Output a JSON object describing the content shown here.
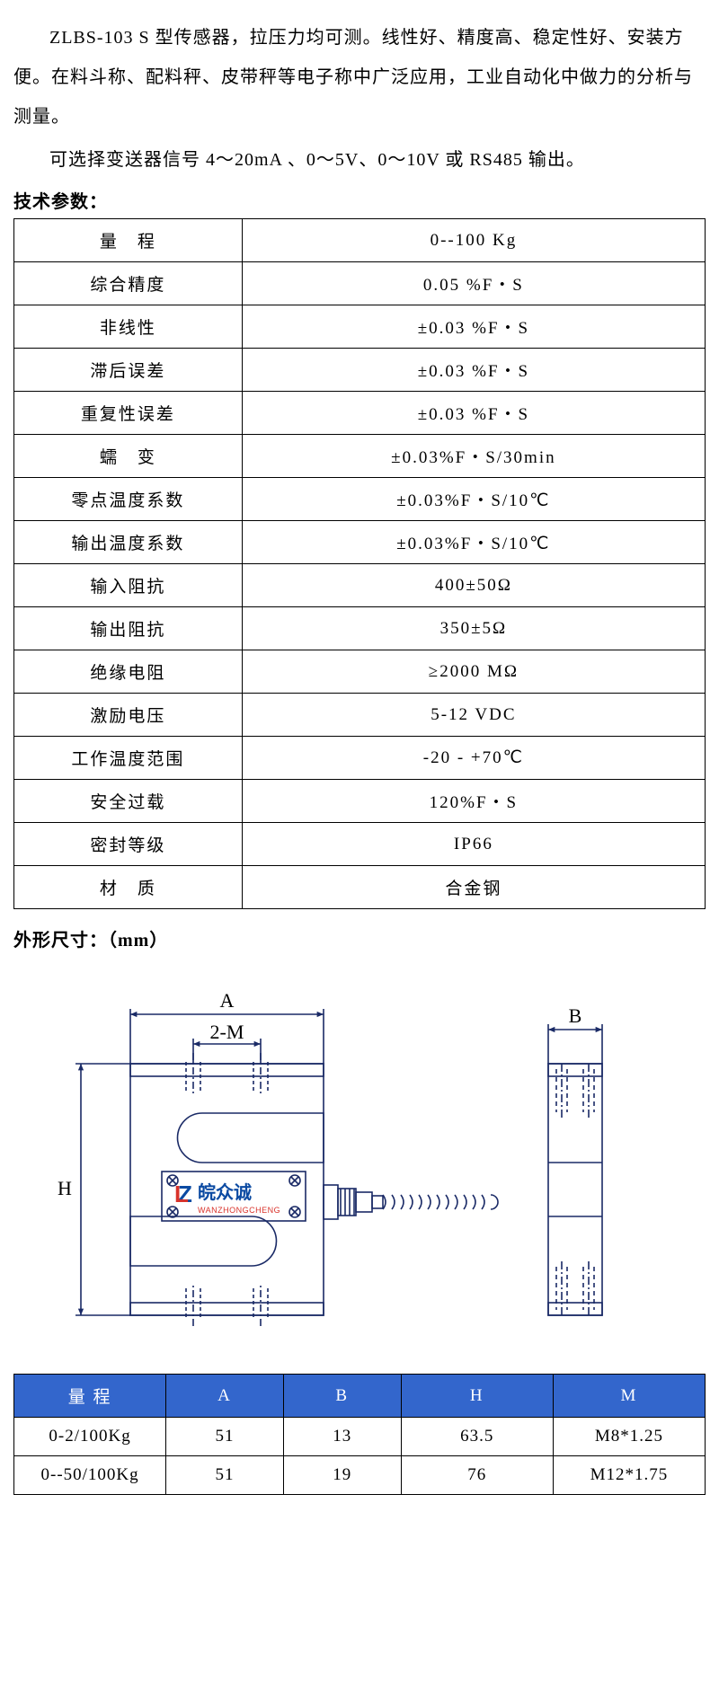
{
  "intro": {
    "p1": "ZLBS-103 S 型传感器，拉压力均可测。线性好、精度高、稳定性好、安装方便。在料斗称、配料秤、皮带秤等电子称中广泛应用，工业自动化中做力的分析与测量。",
    "p2": "可选择变送器信号 4～20mA 、0～5V、0～10V 或 RS485 输出。"
  },
  "spec_title": "技术参数：",
  "spec_rows": [
    {
      "label": "量　程",
      "value": "0--100 Kg"
    },
    {
      "label": "综合精度",
      "value": "0.05 %F・S"
    },
    {
      "label": "非线性",
      "value": "±0.03 %F・S"
    },
    {
      "label": "滞后误差",
      "value": "±0.03 %F・S"
    },
    {
      "label": "重复性误差",
      "value": "±0.03 %F・S"
    },
    {
      "label": "蠕　变",
      "value": "±0.03%F・S/30min"
    },
    {
      "label": "零点温度系数",
      "value": "±0.03%F・S/10℃"
    },
    {
      "label": "输出温度系数",
      "value": "±0.03%F・S/10℃"
    },
    {
      "label": "输入阻抗",
      "value": "400±50Ω"
    },
    {
      "label": "输出阻抗",
      "value": "350±5Ω"
    },
    {
      "label": "绝缘电阻",
      "value": "≥2000 MΩ"
    },
    {
      "label": "激励电压",
      "value": "5-12 VDC"
    },
    {
      "label": "工作温度范围",
      "value": "-20 - +70℃"
    },
    {
      "label": "安全过载",
      "value": "120%F・S"
    },
    {
      "label": "密封等级",
      "value": "IP66"
    },
    {
      "label": "材　质",
      "value": "合金钢"
    }
  ],
  "dim_title": "外形尺寸：（mm）",
  "diagram": {
    "labels": {
      "A": "A",
      "M": "2-M",
      "H": "H",
      "B": "B"
    },
    "brand_text1": "皖众诚",
    "brand_text2": "WANZHONGCHENG",
    "brand_color1": "#0b4aa2",
    "brand_color2": "#d9322a",
    "stroke": "#1a2a66",
    "stroke_width": 1.6
  },
  "dim_table": {
    "header_bg": "#3366cc",
    "header_fg": "#ffffff",
    "columns": [
      "量 程",
      "A",
      "B",
      "H",
      "M"
    ],
    "rows": [
      [
        "0-2/100Kg",
        "51",
        "13",
        "63.5",
        "M8*1.25"
      ],
      [
        "0--50/100Kg",
        "51",
        "19",
        "76",
        "M12*1.75"
      ]
    ],
    "col_widths": [
      "22%",
      "17%",
      "17%",
      "22%",
      "22%"
    ]
  }
}
